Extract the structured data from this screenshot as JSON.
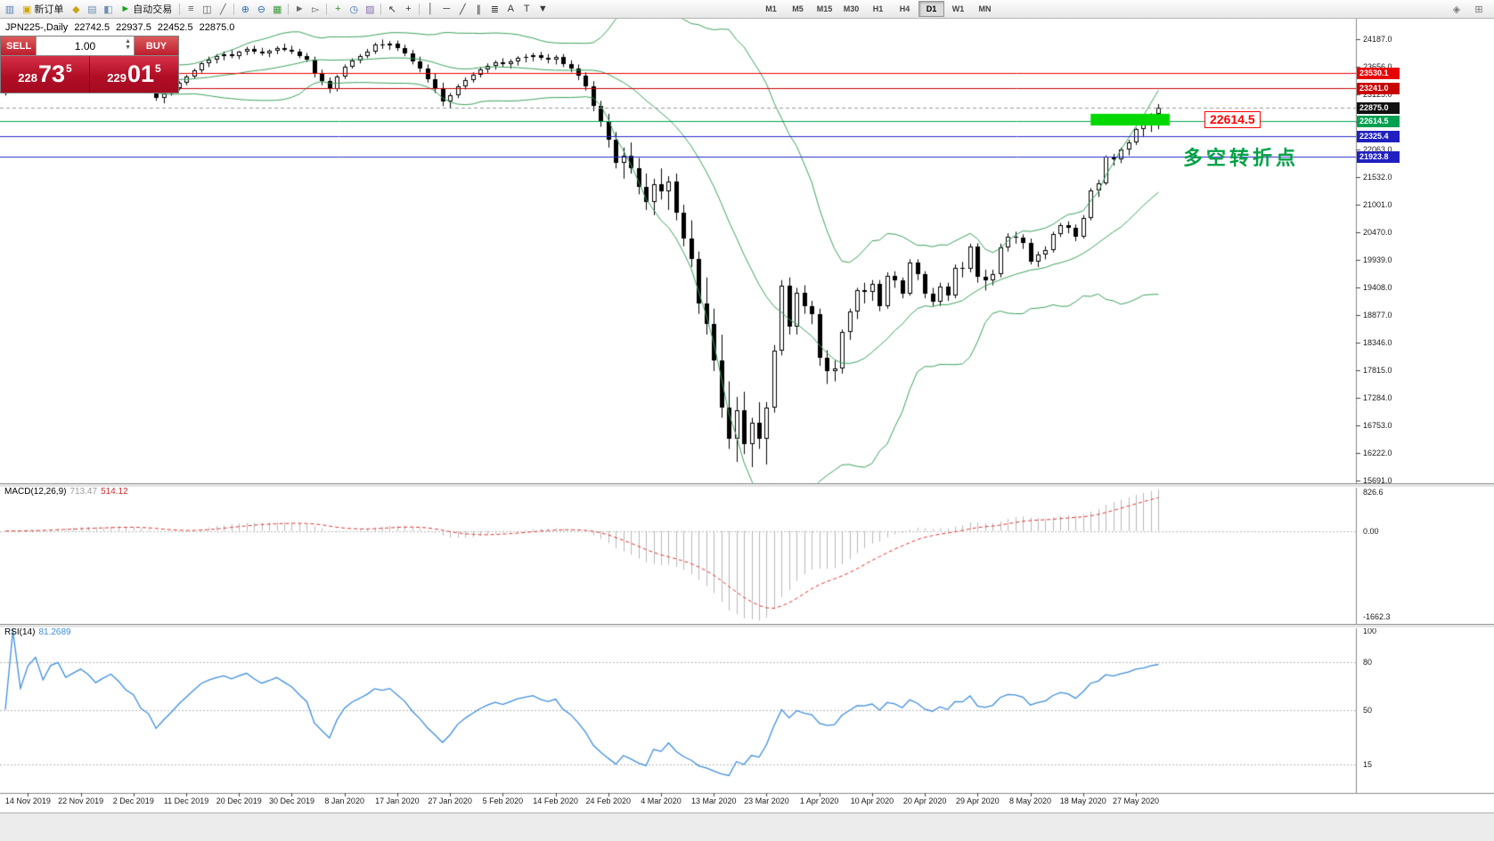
{
  "toolbar": {
    "left_icons": [
      {
        "name": "terminal-icon",
        "glyph": "▥",
        "color": "#4f7fb5"
      },
      {
        "name": "new-order-button",
        "glyph": "▣",
        "color": "#d6a400",
        "label": "新订单"
      },
      {
        "name": "profiles-icon",
        "glyph": "◆",
        "color": "#caa21a"
      },
      {
        "name": "market-watch-icon",
        "glyph": "▤",
        "color": "#6f8fb3"
      },
      {
        "name": "navigator-icon",
        "glyph": "◧",
        "color": "#6f8fb3"
      },
      {
        "name": "autotrading-button",
        "glyph": "►",
        "color": "#18a318",
        "label": "自动交易"
      },
      {
        "sep": true
      },
      {
        "name": "ohlc-bars-icon",
        "glyph": "≡",
        "color": "#5a5a5a"
      },
      {
        "name": "candlestick-chart-icon",
        "glyph": "◫",
        "color": "#5a5a5a"
      },
      {
        "name": "line-chart-icon",
        "glyph": "╱",
        "color": "#5a5a5a"
      },
      {
        "sep": true
      },
      {
        "name": "zoom-in-icon",
        "glyph": "⊕",
        "color": "#2f6fae"
      },
      {
        "name": "zoom-out-icon",
        "glyph": "⊖",
        "color": "#2f6fae"
      },
      {
        "name": "tile-windows-icon",
        "glyph": "▦",
        "color": "#3d9a3d"
      },
      {
        "sep": true
      },
      {
        "name": "auto-scroll-icon",
        "glyph": "►",
        "color": "#6a6a6a"
      },
      {
        "name": "chart-shift-icon",
        "glyph": "▻",
        "color": "#6a6a6a"
      },
      {
        "sep": true
      },
      {
        "name": "new-chart-icon",
        "glyph": "+",
        "color": "#2f8f2f"
      },
      {
        "name": "period-dropdown-icon",
        "glyph": "◷",
        "color": "#2f6fae"
      },
      {
        "name": "template-icon",
        "glyph": "▨",
        "color": "#8a6fae"
      },
      {
        "sep": true
      },
      {
        "name": "cursor-icon",
        "glyph": "↖",
        "color": "#3a3a3a"
      },
      {
        "name": "crosshair-icon",
        "glyph": "+",
        "color": "#3a3a3a"
      },
      {
        "sep": true
      },
      {
        "name": "vertical-line-icon",
        "glyph": "│",
        "color": "#3a3a3a"
      },
      {
        "name": "horizontal-line-icon",
        "glyph": "─",
        "color": "#3a3a3a"
      },
      {
        "name": "trendline-icon",
        "glyph": "╱",
        "color": "#3a3a3a"
      },
      {
        "name": "equidistant-channel-icon",
        "glyph": "∥",
        "color": "#3a3a3a"
      },
      {
        "name": "fibonacci-icon",
        "glyph": "≣",
        "color": "#3a3a3a"
      },
      {
        "name": "text-icon",
        "glyph": "A",
        "color": "#3a3a3a"
      },
      {
        "name": "text-label-icon",
        "glyph": "T",
        "color": "#3a3a3a"
      },
      {
        "name": "arrows-dropdown-icon",
        "glyph": "▼",
        "color": "#3a3a3a"
      }
    ],
    "timeframes": [
      "M1",
      "M5",
      "M15",
      "M30",
      "H1",
      "H4",
      "D1",
      "W1",
      "MN"
    ],
    "active_timeframe": "D1",
    "right_icons": [
      {
        "name": "indicator-window-icon",
        "glyph": "◈",
        "color": "#777777"
      },
      {
        "name": "docking-icon",
        "glyph": "⊞",
        "color": "#777777"
      }
    ]
  },
  "chart_header": {
    "symbol_period": "JPN225-,Daily",
    "open": "22742.5",
    "high": "22937.5",
    "low": "22452.5",
    "close": "22875.0"
  },
  "trade_panel": {
    "sell_label": "SELL",
    "buy_label": "BUY",
    "volume": "1.00",
    "up_glyph": "▲",
    "down_glyph": "▼",
    "sell_price": {
      "small": "228",
      "big": "73",
      "sup": "5",
      "full": "22873.5"
    },
    "buy_price": {
      "small": "229",
      "big": "01",
      "sup": "5",
      "full": "22901.5"
    }
  },
  "annotations": {
    "level_label": "22614.5",
    "turning_point_text": "多空转折点"
  },
  "chart_data": {
    "type": "candlestick",
    "symbol": "JPN225-",
    "period": "Daily",
    "ylim": [
      15691,
      24187
    ],
    "y_ticks": [
      "24187.0",
      "23656.0",
      "23125.0",
      "22594.0",
      "22063.0",
      "21532.0",
      "21001.0",
      "20470.0",
      "19939.0",
      "19408.0",
      "18877.0",
      "18346.0",
      "17815.0",
      "17284.0",
      "16753.0",
      "16222.0",
      "15691.0"
    ],
    "x_labels": [
      "14 Nov 2019",
      "22 Nov 2019",
      "2 Dec 2019",
      "11 Dec 2019",
      "20 Dec 2019",
      "30 Dec 2019",
      "8 Jan 2020",
      "17 Jan 2020",
      "27 Jan 2020",
      "5 Feb 2020",
      "14 Feb 2020",
      "24 Feb 2020",
      "4 Mar 2020",
      "13 Mar 2020",
      "23 Mar 2020",
      "1 Apr 2020",
      "10 Apr 2020",
      "20 Apr 2020",
      "29 Apr 2020",
      "8 May 2020",
      "18 May 2020",
      "27 May 2020"
    ],
    "first_label_index": 3,
    "label_every": 7,
    "levels": [
      {
        "label": "23530.1",
        "price": 23530.1,
        "line_color": "#e80000",
        "tag_bg": "#e80000",
        "style": "solid"
      },
      {
        "label": "23241.0",
        "price": 23241.0,
        "line_color": "#c80000",
        "tag_bg": "#c80000",
        "style": "solid"
      },
      {
        "label": "22875.0",
        "price": 22875.0,
        "line_color": "#999999",
        "tag_bg": "#111111",
        "style": "dashed"
      },
      {
        "label": "22614.5",
        "price": 22614.5,
        "line_color": "#00a050",
        "tag_bg": "#00a050",
        "style": "solid"
      },
      {
        "label": "22325.4",
        "price": 22325.4,
        "line_color": "#2828c8",
        "tag_bg": "#2020c0",
        "style": "solid"
      },
      {
        "label": "21923.8",
        "price": 21923.8,
        "line_color": "#2828c8",
        "tag_bg": "#2020c0",
        "style": "solid"
      }
    ],
    "green_box": {
      "from_index": 144,
      "to_index": 154.5,
      "price_top": 22750,
      "price_bottom": 22525,
      "color": "#00d800"
    },
    "overlays": [
      {
        "type": "bollinger_bands",
        "period": 20,
        "deviation": 2,
        "color": "#3aa05c"
      }
    ],
    "indicators": {
      "macd": {
        "label": "MACD(12,26,9)",
        "fast": 12,
        "slow": 26,
        "signal": 9,
        "main_value": "713.47",
        "signal_value": "514.12",
        "scale_max": "826.6",
        "scale_zero": "0.00",
        "scale_min": "-1662.3",
        "histogram_color": "#b9b9b9",
        "signal_color": "#e03232"
      },
      "rsi": {
        "label": "RSI(14)",
        "period": 14,
        "value": "81.2689",
        "scale": [
          "100",
          "80",
          "50",
          "15"
        ],
        "levels": [
          80,
          50,
          15
        ],
        "line_color": "#3f8edc"
      }
    },
    "ohlc": [
      [
        23150,
        23260,
        23100,
        23230
      ],
      [
        23230,
        23320,
        23180,
        23300
      ],
      [
        23300,
        23380,
        23240,
        23260
      ],
      [
        23260,
        23350,
        23200,
        23330
      ],
      [
        23330,
        23420,
        23280,
        23390
      ],
      [
        23390,
        23450,
        23300,
        23340
      ],
      [
        23340,
        23480,
        23320,
        23460
      ],
      [
        23460,
        23540,
        23400,
        23500
      ],
      [
        23500,
        23560,
        23410,
        23440
      ],
      [
        23440,
        23520,
        23380,
        23490
      ],
      [
        23490,
        23580,
        23430,
        23550
      ],
      [
        23550,
        23620,
        23480,
        23520
      ],
      [
        23520,
        23600,
        23440,
        23470
      ],
      [
        23470,
        23560,
        23400,
        23540
      ],
      [
        23540,
        23640,
        23480,
        23610
      ],
      [
        23610,
        23680,
        23520,
        23560
      ],
      [
        23560,
        23620,
        23450,
        23490
      ],
      [
        23490,
        23570,
        23420,
        23450
      ],
      [
        23450,
        23500,
        23280,
        23320
      ],
      [
        23320,
        23400,
        23200,
        23260
      ],
      [
        23260,
        23300,
        23000,
        23060
      ],
      [
        23060,
        23180,
        22950,
        23150
      ],
      [
        23150,
        23280,
        23100,
        23240
      ],
      [
        23240,
        23380,
        23200,
        23350
      ],
      [
        23350,
        23500,
        23300,
        23460
      ],
      [
        23460,
        23620,
        23420,
        23580
      ],
      [
        23580,
        23750,
        23540,
        23720
      ],
      [
        23720,
        23850,
        23650,
        23800
      ],
      [
        23800,
        23900,
        23720,
        23860
      ],
      [
        23860,
        23950,
        23780,
        23900
      ],
      [
        23900,
        23980,
        23820,
        23870
      ],
      [
        23870,
        23960,
        23800,
        23940
      ],
      [
        23940,
        24040,
        23880,
        24000
      ],
      [
        24000,
        24060,
        23900,
        23950
      ],
      [
        23950,
        24020,
        23870,
        23910
      ],
      [
        23910,
        23990,
        23840,
        23960
      ],
      [
        23960,
        24050,
        23900,
        24020
      ],
      [
        24020,
        24100,
        23950,
        23980
      ],
      [
        23980,
        24060,
        23900,
        23940
      ],
      [
        23940,
        24000,
        23820,
        23870
      ],
      [
        23870,
        23920,
        23750,
        23800
      ],
      [
        23800,
        23850,
        23450,
        23520
      ],
      [
        23520,
        23600,
        23300,
        23380
      ],
      [
        23380,
        23450,
        23150,
        23220
      ],
      [
        23220,
        23500,
        23180,
        23460
      ],
      [
        23460,
        23700,
        23420,
        23660
      ],
      [
        23660,
        23820,
        23620,
        23780
      ],
      [
        23780,
        23900,
        23720,
        23860
      ],
      [
        23860,
        24000,
        23820,
        23950
      ],
      [
        23950,
        24120,
        23900,
        24080
      ],
      [
        24080,
        24180,
        24000,
        24060
      ],
      [
        24060,
        24150,
        23980,
        24100
      ],
      [
        24100,
        24160,
        23960,
        24010
      ],
      [
        24010,
        24080,
        23860,
        23920
      ],
      [
        23920,
        23980,
        23700,
        23760
      ],
      [
        23760,
        23850,
        23550,
        23620
      ],
      [
        23620,
        23700,
        23350,
        23420
      ],
      [
        23420,
        23520,
        23150,
        23230
      ],
      [
        23230,
        23350,
        22900,
        22980
      ],
      [
        22980,
        23150,
        22850,
        23100
      ],
      [
        23100,
        23320,
        23050,
        23280
      ],
      [
        23280,
        23450,
        23220,
        23400
      ],
      [
        23400,
        23550,
        23350,
        23500
      ],
      [
        23500,
        23650,
        23450,
        23600
      ],
      [
        23600,
        23720,
        23540,
        23680
      ],
      [
        23680,
        23780,
        23600,
        23740
      ],
      [
        23740,
        23820,
        23650,
        23700
      ],
      [
        23700,
        23800,
        23620,
        23760
      ],
      [
        23760,
        23860,
        23680,
        23820
      ],
      [
        23820,
        23900,
        23740,
        23850
      ],
      [
        23850,
        23920,
        23760,
        23880
      ],
      [
        23880,
        23940,
        23780,
        23830
      ],
      [
        23830,
        23900,
        23720,
        23800
      ],
      [
        23800,
        23880,
        23700,
        23840
      ],
      [
        23840,
        23900,
        23650,
        23700
      ],
      [
        23700,
        23780,
        23550,
        23620
      ],
      [
        23620,
        23700,
        23400,
        23480
      ],
      [
        23480,
        23550,
        23200,
        23280
      ],
      [
        23280,
        23380,
        22800,
        22900
      ],
      [
        22900,
        23000,
        22500,
        22600
      ],
      [
        22600,
        22750,
        22100,
        22250
      ],
      [
        22250,
        22400,
        21700,
        21800
      ],
      [
        21800,
        22100,
        21500,
        21950
      ],
      [
        21950,
        22200,
        21600,
        21700
      ],
      [
        21700,
        21900,
        21200,
        21350
      ],
      [
        21350,
        21600,
        20900,
        21050
      ],
      [
        21050,
        21500,
        20800,
        21400
      ],
      [
        21400,
        21700,
        21100,
        21250
      ],
      [
        21250,
        21550,
        20900,
        21450
      ],
      [
        21450,
        21600,
        20700,
        20850
      ],
      [
        20850,
        21000,
        20200,
        20350
      ],
      [
        20350,
        20700,
        19800,
        19950
      ],
      [
        19950,
        20100,
        18900,
        19100
      ],
      [
        19100,
        19600,
        18500,
        18700
      ],
      [
        18700,
        19000,
        17800,
        18000
      ],
      [
        18000,
        18500,
        16900,
        17100
      ],
      [
        17100,
        17600,
        16300,
        16500
      ],
      [
        16500,
        17300,
        16050,
        17050
      ],
      [
        17050,
        17400,
        16200,
        16400
      ],
      [
        16400,
        16900,
        15950,
        16800
      ],
      [
        16800,
        17200,
        16300,
        16500
      ],
      [
        16500,
        17200,
        16000,
        17100
      ],
      [
        17100,
        18300,
        17000,
        18200
      ],
      [
        18200,
        19550,
        18100,
        19450
      ],
      [
        19450,
        19600,
        18500,
        18650
      ],
      [
        18650,
        19400,
        18500,
        19300
      ],
      [
        19300,
        19450,
        18900,
        19050
      ],
      [
        19050,
        19150,
        18700,
        18900
      ],
      [
        18900,
        19000,
        17900,
        18050
      ],
      [
        18050,
        18200,
        17550,
        17800
      ],
      [
        17800,
        18000,
        17600,
        17850
      ],
      [
        17850,
        18600,
        17750,
        18550
      ],
      [
        18550,
        19000,
        18400,
        18950
      ],
      [
        18950,
        19400,
        18800,
        19350
      ],
      [
        19350,
        19500,
        19100,
        19330
      ],
      [
        19330,
        19550,
        19150,
        19480
      ],
      [
        19480,
        19550,
        18950,
        19050
      ],
      [
        19050,
        19700,
        19000,
        19630
      ],
      [
        19630,
        19720,
        19400,
        19550
      ],
      [
        19550,
        19600,
        19200,
        19290
      ],
      [
        19290,
        19950,
        19250,
        19890
      ],
      [
        19890,
        19950,
        19550,
        19670
      ],
      [
        19670,
        19720,
        19200,
        19280
      ],
      [
        19280,
        19400,
        19050,
        19140
      ],
      [
        19140,
        19500,
        19050,
        19430
      ],
      [
        19430,
        19500,
        19150,
        19260
      ],
      [
        19260,
        19850,
        19200,
        19780
      ],
      [
        19780,
        19900,
        19600,
        19770
      ],
      [
        19770,
        20250,
        19700,
        20190
      ],
      [
        20190,
        20260,
        19500,
        19620
      ],
      [
        19620,
        19750,
        19350,
        19550
      ],
      [
        19550,
        19750,
        19450,
        19670
      ],
      [
        19670,
        20250,
        19600,
        20180
      ],
      [
        20180,
        20450,
        20100,
        20390
      ],
      [
        20390,
        20480,
        20250,
        20370
      ],
      [
        20370,
        20430,
        20150,
        20270
      ],
      [
        20270,
        20350,
        19850,
        19910
      ],
      [
        19910,
        20100,
        19800,
        20040
      ],
      [
        20040,
        20200,
        19950,
        20130
      ],
      [
        20130,
        20480,
        20080,
        20430
      ],
      [
        20430,
        20650,
        20380,
        20600
      ],
      [
        20600,
        20680,
        20450,
        20550
      ],
      [
        20550,
        20620,
        20300,
        20390
      ],
      [
        20390,
        20800,
        20350,
        20740
      ],
      [
        20740,
        21320,
        20700,
        21270
      ],
      [
        21270,
        21480,
        21150,
        21420
      ],
      [
        21420,
        21950,
        21380,
        21920
      ],
      [
        21920,
        21980,
        21750,
        21880
      ],
      [
        21880,
        22100,
        21800,
        22060
      ],
      [
        22060,
        22250,
        21950,
        22200
      ],
      [
        22200,
        22480,
        22150,
        22450
      ],
      [
        22450,
        22600,
        22300,
        22550
      ],
      [
        22550,
        22760,
        22400,
        22740
      ],
      [
        22742.5,
        22937.5,
        22452.5,
        22875
      ]
    ]
  }
}
